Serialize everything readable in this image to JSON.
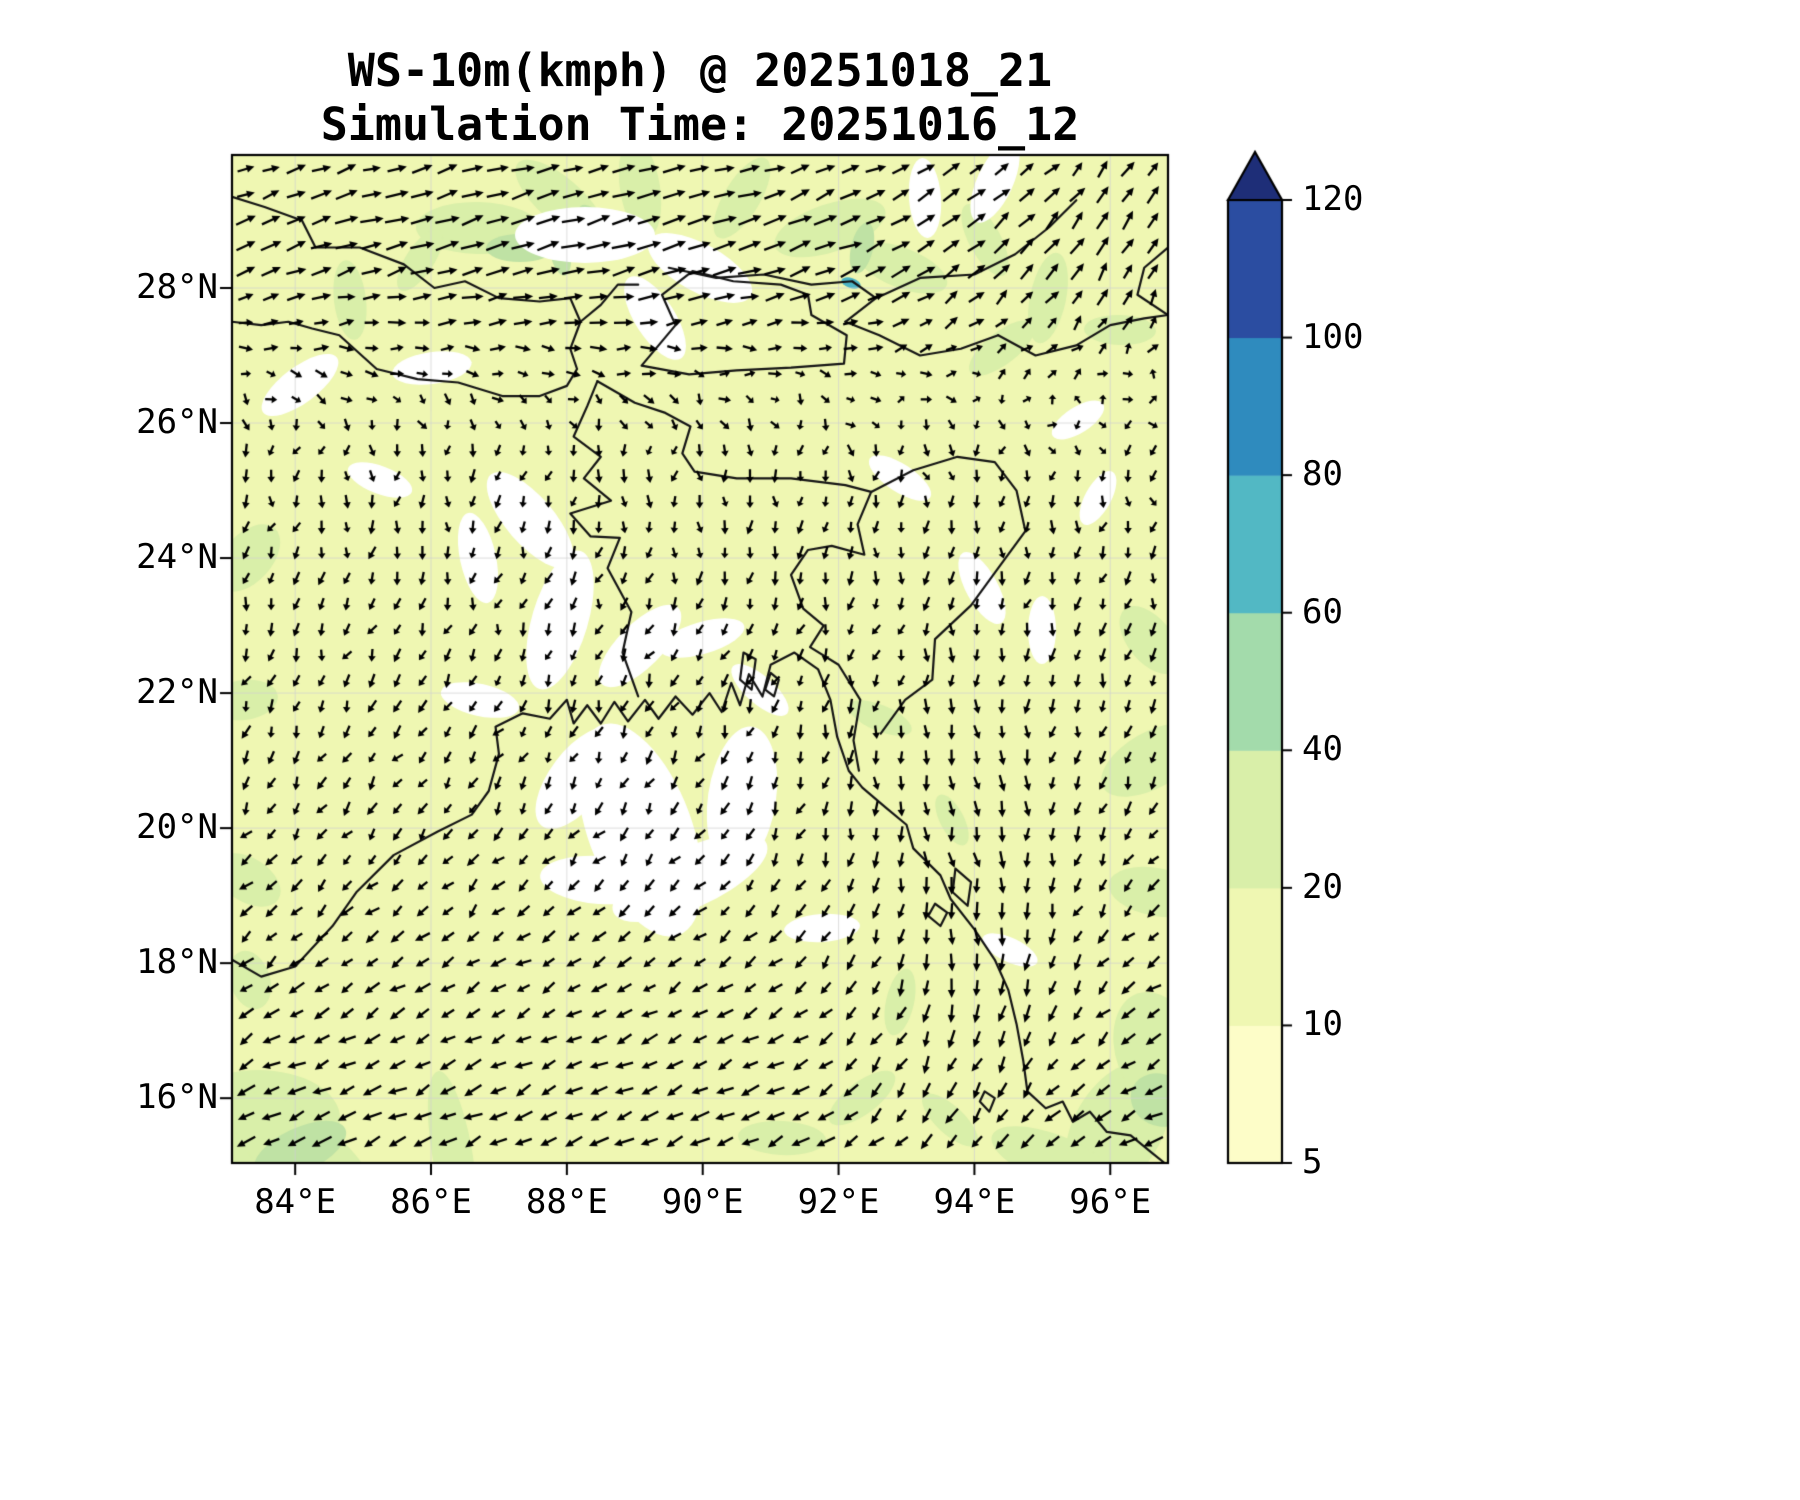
{
  "chart_data": {
    "type": "heatmap",
    "subtype": "wind_speed_filled_contour_with_vectors",
    "title": "WS-10m(kmph) @ 20251018_21",
    "subtitle": "Simulation Time: 20251016_12",
    "variable": "WS-10m",
    "units": "kmph",
    "valid_time": "20251018_21",
    "simulation_time": "20251016_12",
    "grid_on": true,
    "x_axis": {
      "tick_labels": [
        "84°E",
        "86°E",
        "88°E",
        "90°E",
        "92°E",
        "94°E",
        "96°E"
      ],
      "tick_values": [
        84,
        86,
        88,
        90,
        92,
        94,
        96
      ],
      "range_deg_lon": [
        83.07,
        96.85
      ]
    },
    "y_axis": {
      "tick_labels": [
        "16°N",
        "18°N",
        "20°N",
        "22°N",
        "24°N",
        "26°N",
        "28°N"
      ],
      "tick_values": [
        16,
        18,
        20,
        22,
        24,
        26,
        28
      ],
      "range_deg_lat": [
        15.04,
        29.97
      ]
    },
    "colorbar": {
      "orientation": "vertical",
      "extend": "max",
      "levels": [
        5,
        10,
        20,
        40,
        60,
        80,
        100,
        120
      ],
      "tick_labels": [
        "5",
        "10",
        "20",
        "40",
        "60",
        "80",
        "100",
        "120"
      ],
      "segment_colors": [
        "#fdfdc8",
        "#eff7b2",
        "#d9efa9",
        "#a3dbab",
        "#52b8c4",
        "#2f8bbe",
        "#2b4da1"
      ],
      "extend_color": "#1e2e78"
    }
  }
}
